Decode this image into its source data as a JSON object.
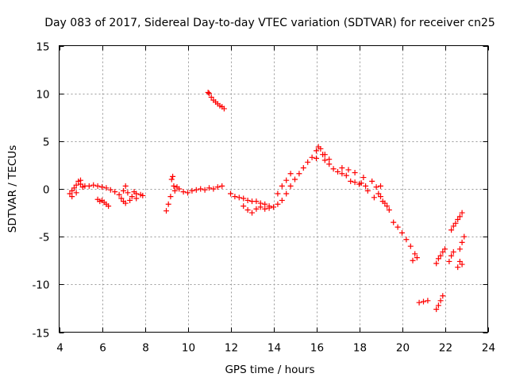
{
  "chart_data": {
    "type": "scatter",
    "title": "Day 083 of 2017, Sidereal Day-to-day VTEC variation (SDTVAR) for receiver cn25",
    "xlabel": "GPS time / hours",
    "ylabel": "SDTVAR / TECUs",
    "xlim": [
      4,
      24
    ],
    "ylim": [
      -15,
      15
    ],
    "xticks": [
      "4",
      "6",
      "8",
      "10",
      "12",
      "14",
      "16",
      "18",
      "20",
      "22",
      "24"
    ],
    "yticks": [
      "15",
      "10",
      "5",
      "0",
      "-5",
      "-10",
      "-15"
    ],
    "grid": true,
    "marker": "+",
    "color": "#ff0000",
    "series": [
      {
        "name": "cn25",
        "points": [
          [
            4.5,
            -0.5
          ],
          [
            4.6,
            -0.2
          ],
          [
            4.7,
            0.1
          ],
          [
            4.8,
            0.4
          ],
          [
            4.9,
            0.8
          ],
          [
            5.0,
            0.5
          ],
          [
            5.1,
            0.2
          ],
          [
            5.2,
            0.3
          ],
          [
            5.4,
            0.3
          ],
          [
            5.6,
            0.4
          ],
          [
            5.8,
            0.3
          ],
          [
            6.0,
            0.2
          ],
          [
            6.2,
            0.1
          ],
          [
            6.4,
            -0.1
          ],
          [
            6.6,
            -0.3
          ],
          [
            6.8,
            -0.6
          ],
          [
            7.0,
            -0.2
          ],
          [
            7.1,
            0.3
          ],
          [
            7.2,
            -0.4
          ],
          [
            7.4,
            -0.8
          ],
          [
            7.6,
            -0.5
          ],
          [
            7.8,
            -0.6
          ],
          [
            7.9,
            -0.7
          ],
          [
            4.6,
            -0.8
          ],
          [
            4.8,
            -0.4
          ],
          [
            5.0,
            0.9
          ],
          [
            5.8,
            -1.1
          ],
          [
            5.9,
            -1.3
          ],
          [
            6.0,
            -1.2
          ],
          [
            6.1,
            -1.4
          ],
          [
            6.2,
            -1.6
          ],
          [
            6.3,
            -1.8
          ],
          [
            6.9,
            -1.0
          ],
          [
            7.0,
            -1.3
          ],
          [
            7.1,
            -1.5
          ],
          [
            7.3,
            -1.2
          ],
          [
            7.5,
            -0.3
          ],
          [
            7.6,
            -1.0
          ],
          [
            9.0,
            -2.3
          ],
          [
            9.1,
            -1.6
          ],
          [
            9.2,
            -0.8
          ],
          [
            9.25,
            1.0
          ],
          [
            9.3,
            1.3
          ],
          [
            9.35,
            0.3
          ],
          [
            9.4,
            -0.2
          ],
          [
            9.5,
            0.2
          ],
          [
            9.6,
            0.0
          ],
          [
            9.8,
            -0.3
          ],
          [
            10.0,
            -0.4
          ],
          [
            10.2,
            -0.2
          ],
          [
            10.4,
            -0.1
          ],
          [
            10.6,
            0.0
          ],
          [
            10.8,
            -0.1
          ],
          [
            11.0,
            0.1
          ],
          [
            11.2,
            0.0
          ],
          [
            11.4,
            0.2
          ],
          [
            11.6,
            0.3
          ],
          [
            10.95,
            10.1
          ],
          [
            11.0,
            10.0
          ],
          [
            11.1,
            9.6
          ],
          [
            11.2,
            9.3
          ],
          [
            11.3,
            9.1
          ],
          [
            11.4,
            8.9
          ],
          [
            11.5,
            8.7
          ],
          [
            11.6,
            8.6
          ],
          [
            11.7,
            8.4
          ],
          [
            12.0,
            -0.5
          ],
          [
            12.2,
            -0.8
          ],
          [
            12.4,
            -0.9
          ],
          [
            12.6,
            -1.0
          ],
          [
            12.8,
            -1.2
          ],
          [
            13.0,
            -1.3
          ],
          [
            13.2,
            -1.3
          ],
          [
            13.4,
            -1.5
          ],
          [
            13.6,
            -1.6
          ],
          [
            13.8,
            -1.8
          ],
          [
            14.0,
            -1.9
          ],
          [
            14.2,
            -1.6
          ],
          [
            14.4,
            -1.2
          ],
          [
            14.6,
            -0.5
          ],
          [
            14.8,
            0.3
          ],
          [
            15.0,
            1.0
          ],
          [
            15.2,
            1.6
          ],
          [
            15.4,
            2.2
          ],
          [
            15.6,
            2.8
          ],
          [
            15.8,
            3.3
          ],
          [
            16.0,
            4.0
          ],
          [
            16.1,
            4.4
          ],
          [
            16.2,
            4.2
          ],
          [
            16.3,
            3.6
          ],
          [
            16.4,
            3.0
          ],
          [
            16.6,
            2.6
          ],
          [
            16.8,
            2.1
          ],
          [
            17.0,
            1.8
          ],
          [
            17.2,
            1.6
          ],
          [
            17.4,
            1.4
          ],
          [
            17.6,
            0.8
          ],
          [
            17.8,
            0.7
          ],
          [
            18.0,
            0.5
          ],
          [
            18.1,
            0.6
          ],
          [
            12.6,
            -1.8
          ],
          [
            12.8,
            -2.2
          ],
          [
            13.0,
            -2.5
          ],
          [
            13.2,
            -2.1
          ],
          [
            13.4,
            -1.9
          ],
          [
            13.6,
            -2.1
          ],
          [
            13.8,
            -2.0
          ],
          [
            14.2,
            -0.5
          ],
          [
            14.4,
            0.3
          ],
          [
            14.6,
            0.9
          ],
          [
            14.8,
            1.6
          ],
          [
            16.0,
            3.2
          ],
          [
            16.4,
            3.6
          ],
          [
            16.6,
            3.1
          ],
          [
            17.2,
            2.2
          ],
          [
            17.5,
            2.0
          ],
          [
            17.8,
            1.7
          ],
          [
            18.2,
            1.2
          ],
          [
            18.3,
            0.3
          ],
          [
            18.4,
            -0.2
          ],
          [
            18.6,
            0.8
          ],
          [
            18.8,
            0.2
          ],
          [
            18.9,
            -0.5
          ],
          [
            19.0,
            -0.8
          ],
          [
            19.1,
            -1.3
          ],
          [
            19.2,
            -1.5
          ],
          [
            19.3,
            -1.8
          ],
          [
            19.4,
            -2.2
          ],
          [
            18.7,
            -0.9
          ],
          [
            19.0,
            0.3
          ],
          [
            19.6,
            -3.5
          ],
          [
            19.8,
            -4.0
          ],
          [
            20.0,
            -4.6
          ],
          [
            20.2,
            -5.3
          ],
          [
            20.4,
            -6.0
          ],
          [
            20.6,
            -6.8
          ],
          [
            20.7,
            -7.2
          ],
          [
            20.5,
            -7.5
          ],
          [
            20.8,
            -11.9
          ],
          [
            21.0,
            -11.8
          ],
          [
            21.2,
            -11.7
          ],
          [
            21.6,
            -12.6
          ],
          [
            21.7,
            -12.2
          ],
          [
            21.8,
            -11.7
          ],
          [
            21.9,
            -11.2
          ],
          [
            21.6,
            -7.8
          ],
          [
            21.7,
            -7.3
          ],
          [
            21.8,
            -7.0
          ],
          [
            21.9,
            -6.6
          ],
          [
            22.0,
            -6.3
          ],
          [
            22.2,
            -7.6
          ],
          [
            22.3,
            -7.0
          ],
          [
            22.4,
            -6.6
          ],
          [
            22.3,
            -4.3
          ],
          [
            22.4,
            -3.9
          ],
          [
            22.5,
            -3.6
          ],
          [
            22.6,
            -3.2
          ],
          [
            22.7,
            -2.9
          ],
          [
            22.8,
            -2.5
          ],
          [
            22.6,
            -8.2
          ],
          [
            22.7,
            -7.6
          ],
          [
            22.8,
            -7.9
          ],
          [
            22.7,
            -6.3
          ],
          [
            22.8,
            -5.6
          ],
          [
            22.9,
            -5.0
          ]
        ]
      }
    ]
  }
}
